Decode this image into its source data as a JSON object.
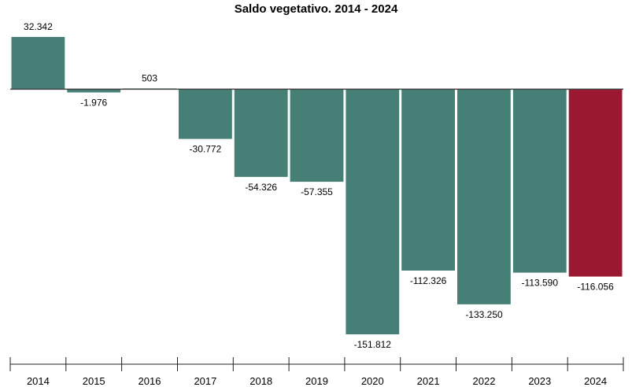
{
  "chart_data": {
    "type": "bar",
    "title": "Saldo vegetativo. 2014 - 2024",
    "xlabel": "",
    "ylabel": "",
    "categories": [
      "2014",
      "2015",
      "2016",
      "2017",
      "2018",
      "2019",
      "2020",
      "2021",
      "2022",
      "2023",
      "2024"
    ],
    "values": [
      32342,
      -1976,
      503,
      -30772,
      -54326,
      -57355,
      -151812,
      -112326,
      -133250,
      -113590,
      -116056
    ],
    "value_labels": [
      "32.342",
      "-1.976",
      "503",
      "-30.772",
      "-54.326",
      "-57.355",
      "-151.812",
      "-112.326",
      "-133.250",
      "-113.590",
      "-116.056"
    ],
    "ylim": [
      -151812,
      32342
    ],
    "grid": false,
    "legend": "none",
    "colors": {
      "default_bar": "#467f76",
      "highlight_bar": "#9b1832",
      "zero_line": "#444444",
      "axis": "#222222"
    },
    "highlight_category": "2024"
  }
}
